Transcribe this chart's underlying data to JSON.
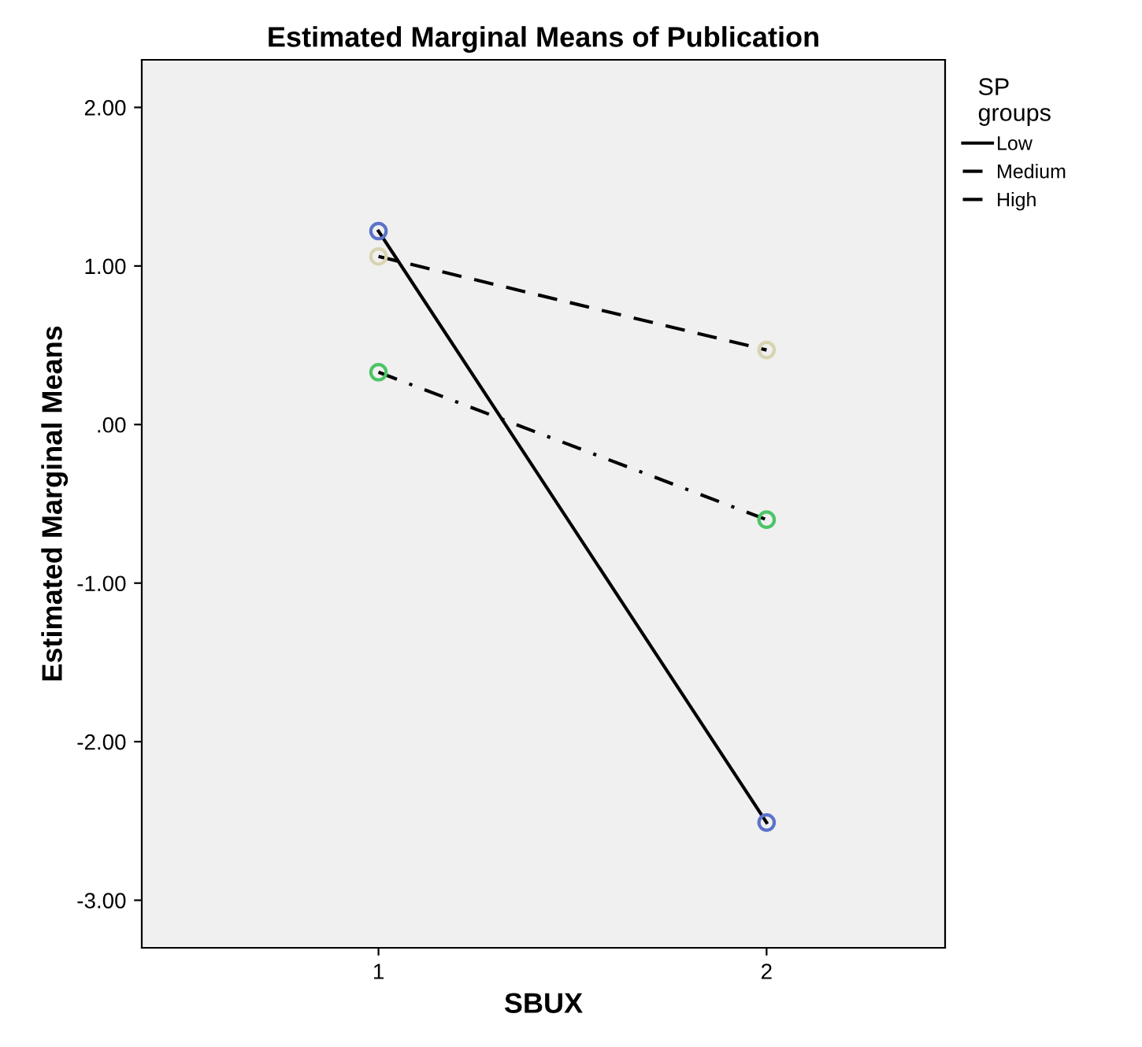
{
  "chart_data": {
    "type": "line",
    "title": "Estimated Marginal Means of Publication",
    "xlabel": "SBUX",
    "ylabel": "Estimated Marginal Means",
    "legend_title": "SP\ngroups",
    "legend": "right",
    "marker": "circle",
    "grid": false,
    "x": [
      1,
      2
    ],
    "xlim": [
      0.39,
      2.46
    ],
    "xticks": [
      1,
      2
    ],
    "ylim": [
      -3.3,
      2.3
    ],
    "yticks": [
      {
        "value": 2,
        "label": "2.00"
      },
      {
        "value": 1,
        "label": "1.00"
      },
      {
        "value": 0,
        "label": ".00"
      },
      {
        "value": -1,
        "label": "-1.00"
      },
      {
        "value": -2,
        "label": "-2.00"
      },
      {
        "value": -3,
        "label": "-3.00"
      }
    ],
    "series": [
      {
        "name": "Low",
        "color": "#5b73c9",
        "line_style": "solid",
        "values": [
          1.22,
          -2.51
        ]
      },
      {
        "name": "Medium",
        "color": "#4cc466",
        "line_style": "dashdot",
        "values": [
          0.33,
          -0.6
        ]
      },
      {
        "name": "High",
        "color": "#d8d4b0",
        "line_style": "dashed",
        "values": [
          1.06,
          0.47
        ]
      }
    ]
  }
}
